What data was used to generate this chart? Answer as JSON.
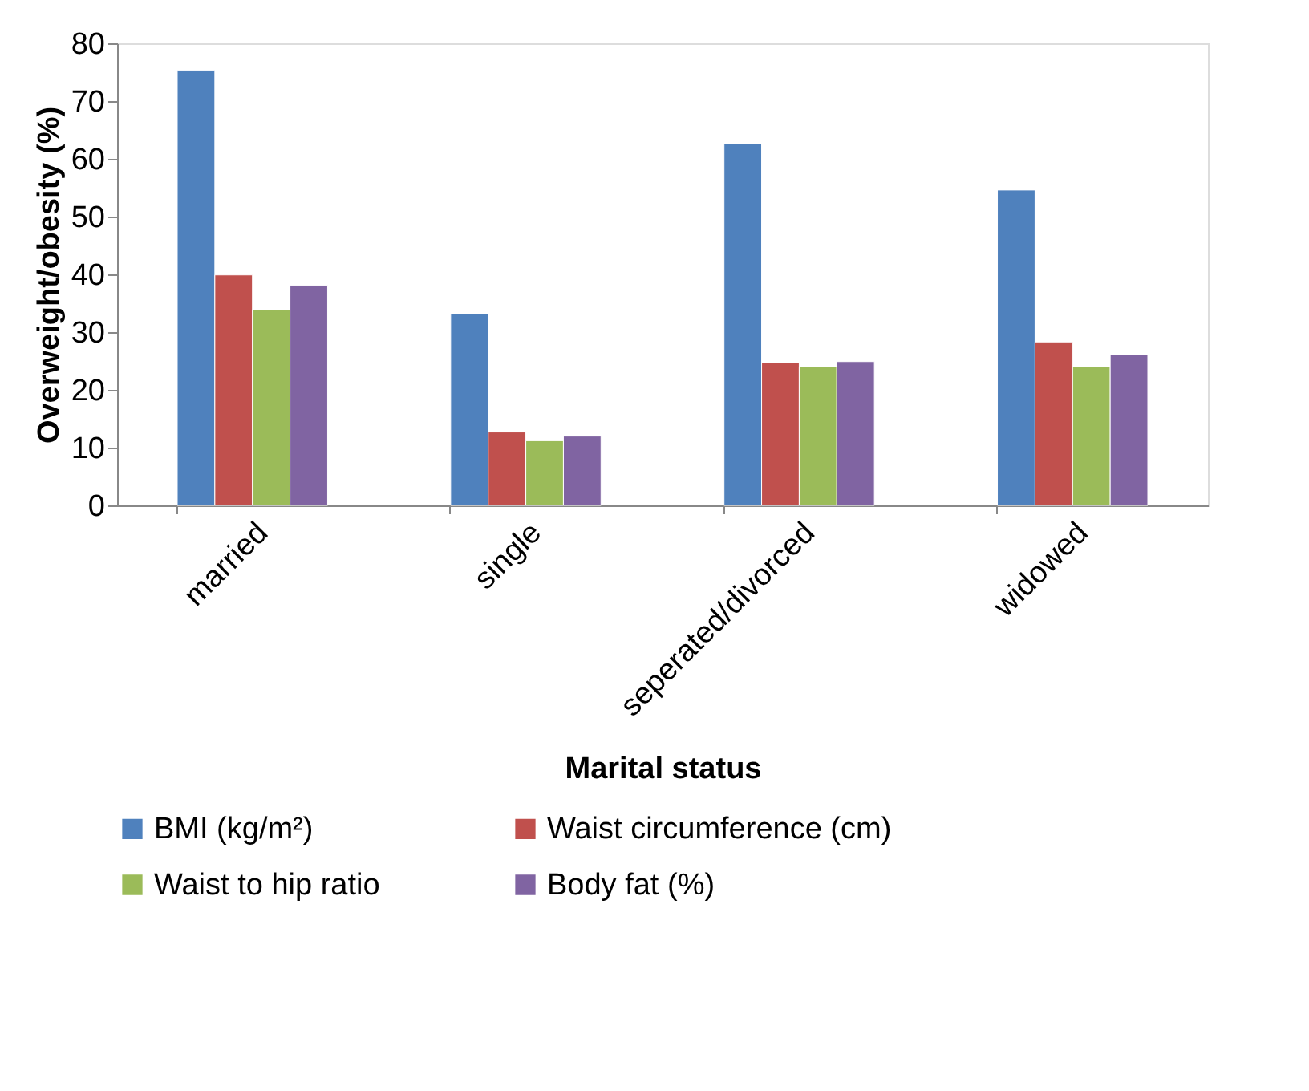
{
  "chart_data": {
    "type": "bar",
    "xlabel": "Marital status",
    "ylabel": "Overweight/obesity (%)",
    "categories": [
      "married",
      "single",
      "seperated/divorced",
      "widowed"
    ],
    "series": [
      {
        "name": "BMI (kg/m²)",
        "color": "#4f81bd",
        "values": [
          75.3,
          33.2,
          62.6,
          54.6
        ]
      },
      {
        "name": "Waist circumference (cm)",
        "color": "#c0504d",
        "values": [
          39.9,
          12.7,
          24.7,
          28.3
        ]
      },
      {
        "name": "Waist to hip ratio",
        "color": "#9bbb59",
        "values": [
          33.9,
          11.2,
          24.0,
          24.0
        ]
      },
      {
        "name": "Body fat (%)",
        "color": "#8064a2",
        "values": [
          38.1,
          12.0,
          24.9,
          26.1
        ]
      }
    ],
    "ylim": [
      0,
      80
    ],
    "yticks": [
      0,
      10,
      20,
      30,
      40,
      50,
      60,
      70,
      80
    ],
    "grid": false,
    "legend": "bottom"
  }
}
